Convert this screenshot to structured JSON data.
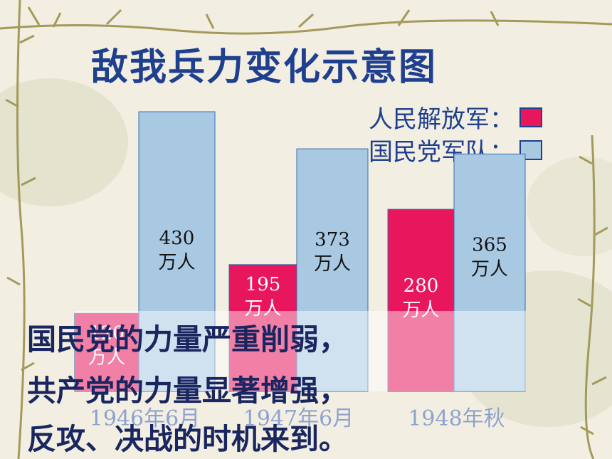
{
  "chart_data": {
    "type": "bar",
    "title": "敌我兵力变化示意图",
    "categories": [
      "1946年6月",
      "1947年6月",
      "1948年秋"
    ],
    "series": [
      {
        "name": "人民解放军：",
        "values": [
          120,
          195,
          280
        ],
        "labels": [
          "120\n万人",
          "195\n万人",
          "280\n万人"
        ],
        "color": "#e8175d"
      },
      {
        "name": "国民党军队：",
        "values": [
          430,
          373,
          365
        ],
        "labels": [
          "430\n万人",
          "373\n万人",
          "365\n万人"
        ],
        "color": "#a9c9e3"
      }
    ],
    "unit": "万人",
    "ylim": [
      0,
      430
    ]
  },
  "conclusion": [
    "国民党的力量严重削弱，",
    "共产党的力量显著增强，",
    "反攻、决战的时机来到。"
  ],
  "colors": {
    "title": "#1f3f8f",
    "conclusion": "#1a2660",
    "pla": "#e8175d",
    "kmt": "#a9c9e3",
    "axis_label": "#8ea2cf"
  }
}
